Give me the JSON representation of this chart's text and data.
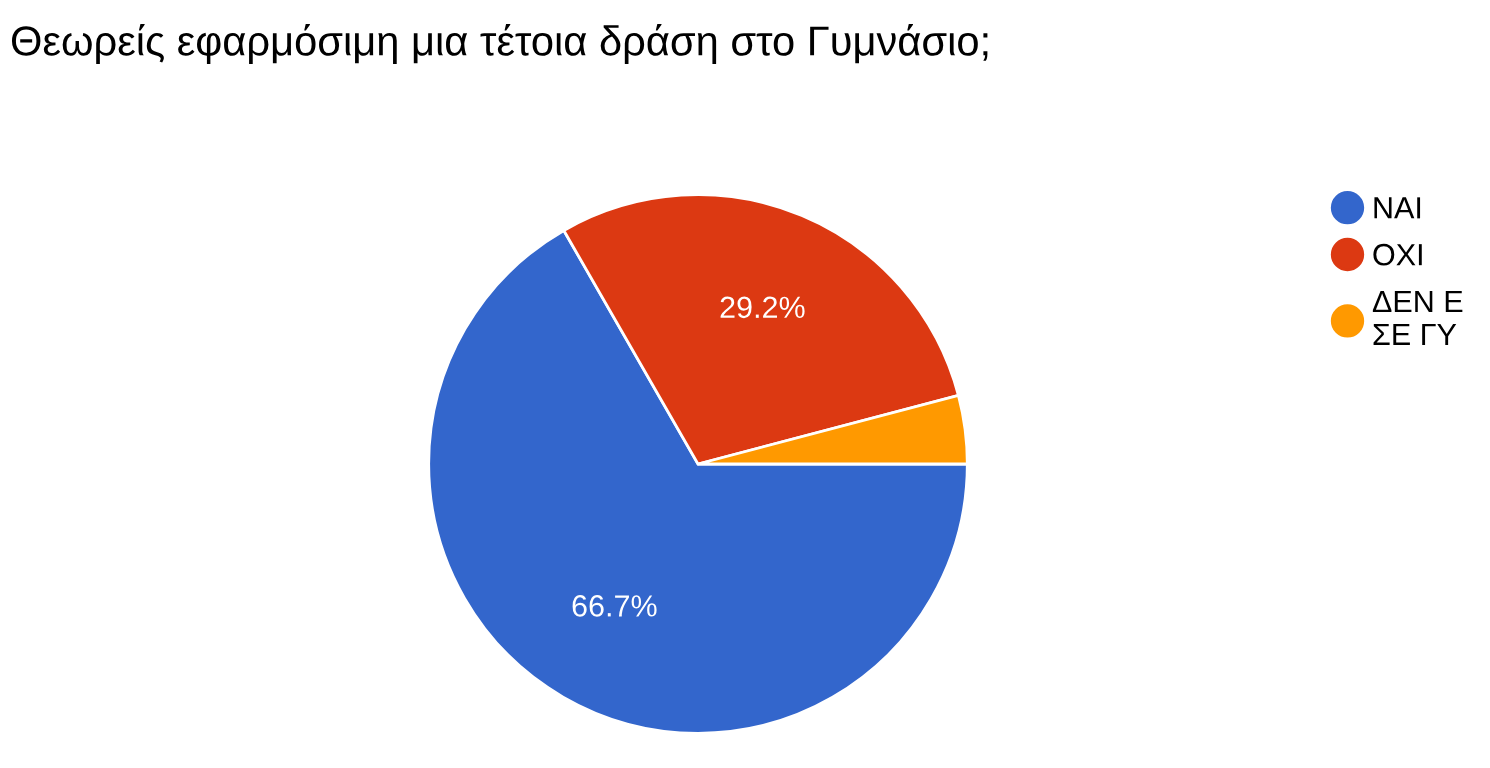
{
  "chart_data": {
    "type": "pie",
    "title": "Θεωρείς εφαρμόσιμη μια τέτοια δράση στο Γυμνάσιο;",
    "categories": [
      "ΝΑΙ",
      "ΟΧΙ",
      "ΔΕΝ Ε\nΣΕ ΓΥ"
    ],
    "values": [
      66.7,
      29.2,
      4.1
    ],
    "colors": [
      "#3366cc",
      "#dc3912",
      "#ff9900"
    ],
    "value_labels": [
      "66.7%",
      "29.2%",
      null
    ],
    "legend": "right"
  }
}
